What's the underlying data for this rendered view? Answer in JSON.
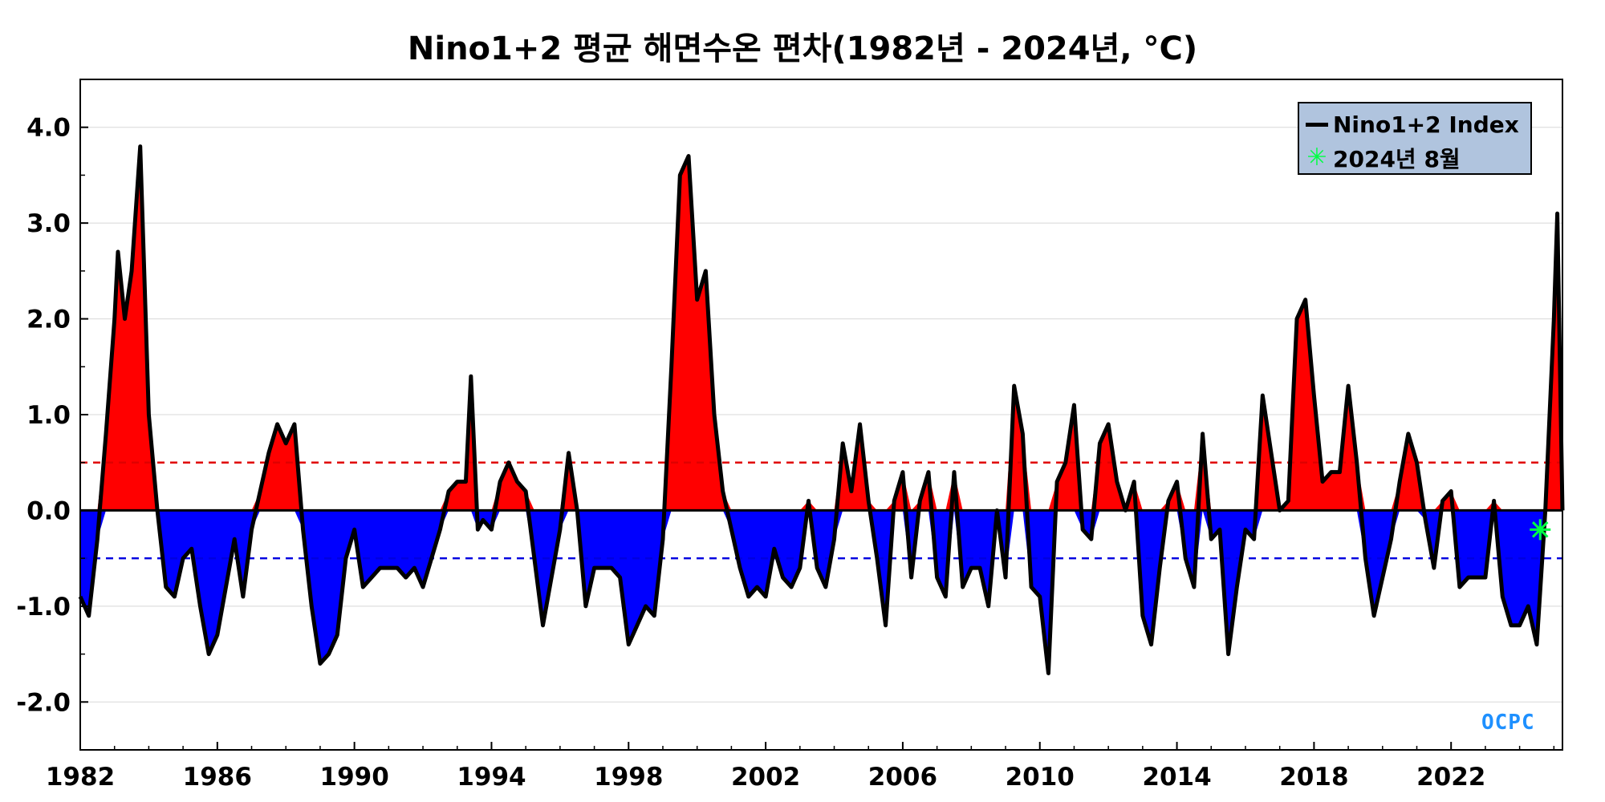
{
  "chart_data": {
    "type": "area",
    "title": "Nino1+2 평균 해면수온 편차(1982년 - 2024년, °C)",
    "xlabel": "",
    "ylabel": "",
    "xlim": [
      1982,
      2025.25
    ],
    "ylim": [
      -2.5,
      4.5
    ],
    "x_ticks": [
      1982,
      1986,
      1990,
      1994,
      1998,
      2002,
      2006,
      2010,
      2014,
      2018,
      2022
    ],
    "y_ticks": [
      {
        "value": 4.0,
        "label": "4.0"
      },
      {
        "value": 3.0,
        "label": "3.0"
      },
      {
        "value": 2.0,
        "label": "2.0"
      },
      {
        "value": 1.0,
        "label": "1.0"
      },
      {
        "value": 0.0,
        "label": "0.0"
      },
      {
        "value": -1.0,
        "label": "-1.0"
      },
      {
        "value": -2.0,
        "label": "-2.0"
      }
    ],
    "thresholds": [
      {
        "value": 0.5,
        "color": "#e00000",
        "style": "dashed"
      },
      {
        "value": -0.5,
        "color": "#0000e0",
        "style": "dashed"
      }
    ],
    "positive_fill_color": "#ff0000",
    "negative_fill_color": "#0000ff",
    "index_line_color": "#000000",
    "series": [
      {
        "name": "Nino1+2 Index",
        "points": [
          [
            1982.0,
            -0.9
          ],
          [
            1982.25,
            -1.1
          ],
          [
            1982.5,
            -0.3
          ],
          [
            1982.75,
            0.8
          ],
          [
            1983.0,
            2.0
          ],
          [
            1983.1,
            2.7
          ],
          [
            1983.3,
            2.0
          ],
          [
            1983.5,
            2.5
          ],
          [
            1983.75,
            3.8
          ],
          [
            1984.0,
            1.0
          ],
          [
            1984.25,
            0.0
          ],
          [
            1984.5,
            -0.8
          ],
          [
            1984.75,
            -0.9
          ],
          [
            1985.0,
            -0.5
          ],
          [
            1985.25,
            -0.4
          ],
          [
            1985.5,
            -1.0
          ],
          [
            1985.75,
            -1.5
          ],
          [
            1986.0,
            -1.3
          ],
          [
            1986.25,
            -0.8
          ],
          [
            1986.5,
            -0.3
          ],
          [
            1986.75,
            -0.9
          ],
          [
            1987.0,
            -0.2
          ],
          [
            1987.25,
            0.2
          ],
          [
            1987.5,
            0.6
          ],
          [
            1987.75,
            0.9
          ],
          [
            1988.0,
            0.7
          ],
          [
            1988.25,
            0.9
          ],
          [
            1988.5,
            -0.2
          ],
          [
            1988.75,
            -1.0
          ],
          [
            1989.0,
            -1.6
          ],
          [
            1989.25,
            -1.5
          ],
          [
            1989.5,
            -1.3
          ],
          [
            1989.75,
            -0.5
          ],
          [
            1990.0,
            -0.2
          ],
          [
            1990.25,
            -0.8
          ],
          [
            1990.5,
            -0.7
          ],
          [
            1990.75,
            -0.6
          ],
          [
            1991.0,
            -0.6
          ],
          [
            1991.25,
            -0.6
          ],
          [
            1991.5,
            -0.7
          ],
          [
            1991.75,
            -0.6
          ],
          [
            1992.0,
            -0.8
          ],
          [
            1992.25,
            -0.5
          ],
          [
            1992.5,
            -0.2
          ],
          [
            1992.75,
            0.2
          ],
          [
            1993.0,
            0.3
          ],
          [
            1993.25,
            0.3
          ],
          [
            1993.4,
            1.4
          ],
          [
            1993.6,
            -0.2
          ],
          [
            1993.75,
            -0.1
          ],
          [
            1994.0,
            -0.2
          ],
          [
            1994.25,
            0.3
          ],
          [
            1994.5,
            0.5
          ],
          [
            1994.75,
            0.3
          ],
          [
            1995.0,
            0.2
          ],
          [
            1995.25,
            -0.5
          ],
          [
            1995.5,
            -1.2
          ],
          [
            1995.75,
            -0.7
          ],
          [
            1996.0,
            -0.2
          ],
          [
            1996.25,
            0.6
          ],
          [
            1996.5,
            0.0
          ],
          [
            1996.75,
            -1.0
          ],
          [
            1997.0,
            -0.6
          ],
          [
            1997.25,
            -0.6
          ],
          [
            1997.5,
            -0.6
          ],
          [
            1997.75,
            -0.7
          ],
          [
            1998.0,
            -1.4
          ],
          [
            1998.25,
            -1.2
          ],
          [
            1998.5,
            -1.0
          ],
          [
            1998.75,
            -1.1
          ],
          [
            1999.0,
            -0.3
          ],
          [
            1999.25,
            1.5
          ],
          [
            1999.5,
            3.5
          ],
          [
            1999.75,
            3.7
          ],
          [
            2000.0,
            2.2
          ],
          [
            2000.25,
            2.5
          ],
          [
            2000.5,
            1.0
          ],
          [
            2000.75,
            0.2
          ],
          [
            2001.0,
            -0.2
          ],
          [
            2001.25,
            -0.6
          ],
          [
            2001.5,
            -0.9
          ],
          [
            2001.75,
            -0.8
          ],
          [
            2002.0,
            -0.9
          ],
          [
            2002.25,
            -0.4
          ],
          [
            2002.5,
            -0.7
          ],
          [
            2002.75,
            -0.8
          ],
          [
            2003.0,
            -0.6
          ],
          [
            2003.25,
            0.1
          ],
          [
            2003.5,
            -0.6
          ],
          [
            2003.75,
            -0.8
          ],
          [
            2004.0,
            -0.3
          ],
          [
            2004.25,
            0.7
          ],
          [
            2004.5,
            0.2
          ],
          [
            2004.75,
            0.9
          ],
          [
            2005.0,
            0.1
          ],
          [
            2005.25,
            -0.5
          ],
          [
            2005.5,
            -1.2
          ],
          [
            2005.75,
            0.1
          ],
          [
            2006.0,
            0.4
          ],
          [
            2006.25,
            -0.7
          ],
          [
            2006.5,
            0.1
          ],
          [
            2006.75,
            0.4
          ],
          [
            2007.0,
            -0.7
          ],
          [
            2007.25,
            -0.9
          ],
          [
            2007.5,
            0.4
          ],
          [
            2007.75,
            -0.8
          ],
          [
            2008.0,
            -0.6
          ],
          [
            2008.25,
            -0.6
          ],
          [
            2008.5,
            -1.0
          ],
          [
            2008.75,
            0.0
          ],
          [
            2009.0,
            -0.7
          ],
          [
            2009.25,
            1.3
          ],
          [
            2009.5,
            0.8
          ],
          [
            2009.75,
            -0.8
          ],
          [
            2010.0,
            -0.9
          ],
          [
            2010.25,
            -1.7
          ],
          [
            2010.5,
            0.3
          ],
          [
            2010.75,
            0.5
          ],
          [
            2011.0,
            1.1
          ],
          [
            2011.25,
            -0.2
          ],
          [
            2011.5,
            -0.3
          ],
          [
            2011.75,
            0.7
          ],
          [
            2012.0,
            0.9
          ],
          [
            2012.25,
            0.3
          ],
          [
            2012.5,
            0.0
          ],
          [
            2012.75,
            0.3
          ],
          [
            2013.0,
            -1.1
          ],
          [
            2013.25,
            -1.4
          ],
          [
            2013.5,
            -0.6
          ],
          [
            2013.75,
            0.1
          ],
          [
            2014.0,
            0.3
          ],
          [
            2014.25,
            -0.5
          ],
          [
            2014.5,
            -0.8
          ],
          [
            2014.75,
            0.8
          ],
          [
            2015.0,
            -0.3
          ],
          [
            2015.25,
            -0.2
          ],
          [
            2015.5,
            -1.5
          ],
          [
            2015.75,
            -0.8
          ],
          [
            2016.0,
            -0.2
          ],
          [
            2016.25,
            -0.3
          ],
          [
            2016.5,
            1.2
          ],
          [
            2016.75,
            0.6
          ],
          [
            2017.0,
            0.0
          ],
          [
            2017.25,
            0.1
          ],
          [
            2017.5,
            2.0
          ],
          [
            2017.75,
            2.2
          ],
          [
            2018.0,
            1.2
          ],
          [
            2018.25,
            0.3
          ],
          [
            2018.5,
            0.4
          ],
          [
            2018.75,
            0.4
          ],
          [
            2019.0,
            1.3
          ],
          [
            2019.25,
            0.5
          ],
          [
            2019.5,
            -0.5
          ],
          [
            2019.75,
            -1.1
          ],
          [
            2020.0,
            -0.7
          ],
          [
            2020.25,
            -0.3
          ],
          [
            2020.5,
            0.3
          ],
          [
            2020.75,
            0.8
          ],
          [
            2021.0,
            0.5
          ],
          [
            2021.25,
            -0.1
          ],
          [
            2021.5,
            -0.6
          ],
          [
            2021.75,
            0.1
          ],
          [
            2022.0,
            0.2
          ],
          [
            2022.25,
            -0.8
          ],
          [
            2022.5,
            -0.7
          ],
          [
            2022.75,
            -0.7
          ],
          [
            2023.0,
            -0.7
          ],
          [
            2023.25,
            0.1
          ],
          [
            2023.5,
            -0.9
          ],
          [
            2023.75,
            -1.2
          ],
          [
            2024.0,
            -1.2
          ],
          [
            2024.25,
            -1.0
          ],
          [
            2024.5,
            -1.4
          ],
          [
            2024.75,
            0.0
          ],
          [
            2025.0,
            2.0
          ],
          [
            2025.1,
            3.1
          ],
          [
            2025.25,
            0.0
          ]
        ]
      }
    ],
    "highlight_point": {
      "label": "2024년 8월",
      "x": 2024.6,
      "y": -0.2,
      "color": "#00ff44"
    },
    "legend": {
      "position": "top-right",
      "entries": [
        {
          "label": "Nino1+2 Index",
          "marker": "line",
          "color": "#000000"
        },
        {
          "label": "2024년 8월",
          "marker": "star",
          "color": "#00ff44"
        }
      ]
    }
  },
  "logo_text": "OCPC"
}
